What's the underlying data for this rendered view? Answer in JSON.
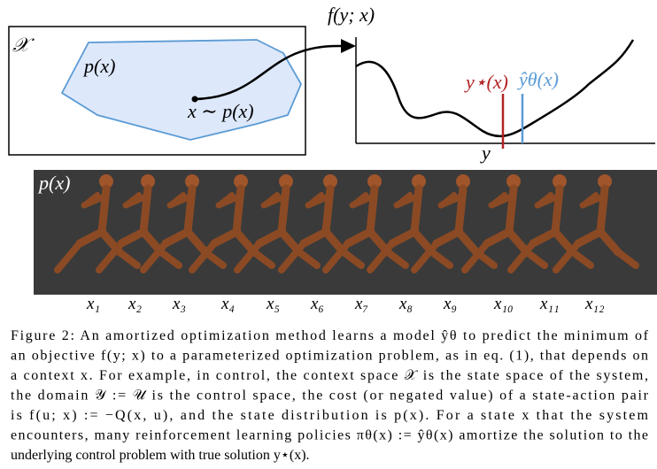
{
  "left_panel": {
    "space": "𝒳",
    "distribution": "p(x)",
    "sample": "x ∼ p(x)"
  },
  "right_panel": {
    "ylabel": "f(y; x)",
    "xlabel": "y",
    "true_solution": "y⋆(x)",
    "model_solution": "ŷθ(x)"
  },
  "bottom_panel": {
    "label": "p(x)",
    "samples": [
      "x₁",
      "x₂",
      "x₃",
      "x₄",
      "x₅",
      "x₆",
      "x₇",
      "x₈",
      "x₉",
      "x₁₀",
      "x₁₁",
      "x₁₂"
    ]
  },
  "caption": {
    "lines": [
      "Figure 2: An amortized optimization method learns a model ŷθ to predict the minimum of",
      "an objective f(y; x) to a parameterized optimization problem, as in eq. (1), that depends on",
      "a context x. For example, in control, the context space 𝒳 is the state space of the system,",
      "the domain 𝒴 := 𝒰 is the control space, the cost (or negated value) of a state-action pair",
      "is f(u; x) := −Q(x, u), and the state distribution is p(x). For a state x that the system",
      "encounters, many reinforcement learning policies πθ(x) := ŷθ(x) amortize the solution to the",
      "underlying control problem with true solution y⋆(x)."
    ]
  }
}
